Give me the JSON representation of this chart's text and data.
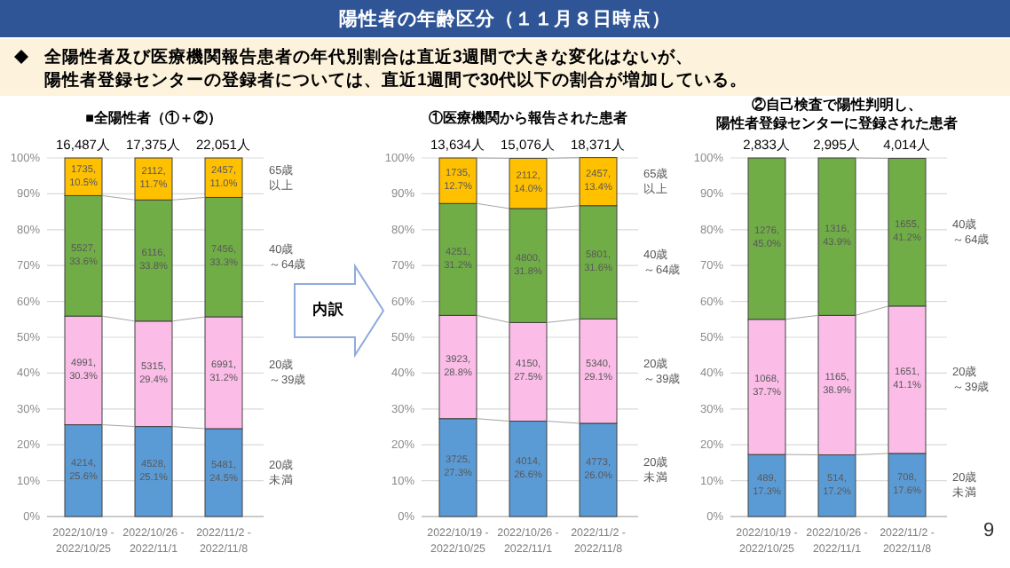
{
  "chart_data": [
    {
      "type": "other",
      "title": "陽性者の年齢区分（１１月８日時点）",
      "subtitle": "全陽性者及び医療機関報告患者の年代別割合は直近3週間で大きな変化はないが、陽性者登録センターの登録者については、直近1週間で30代以下の割合が増加している。",
      "annotations": [
        "内訳",
        "9"
      ]
    },
    {
      "type": "bar",
      "stacked": true,
      "title": "■全陽性者（①＋②）",
      "categories": [
        "2022/10/19 - 2022/10/25",
        "2022/10/26 - 2022/11/1",
        "2022/11/2 - 2022/11/8"
      ],
      "ylim": [
        0,
        100
      ],
      "yticks": [
        {
          "value": 0,
          "label": "0%"
        },
        {
          "value": 10,
          "label": "10%"
        },
        {
          "value": 20,
          "label": "20%"
        },
        {
          "value": 30,
          "label": "30%"
        },
        {
          "value": 40,
          "label": "40%"
        },
        {
          "value": 50,
          "label": "50%"
        },
        {
          "value": 60,
          "label": "60%"
        },
        {
          "value": 70,
          "label": "70%"
        },
        {
          "value": 80,
          "label": "80%"
        },
        {
          "value": 90,
          "label": "90%"
        },
        {
          "value": 100,
          "label": "100%"
        }
      ],
      "grid": "y",
      "legend": false,
      "annotations": [
        {
          "text": "16,487人",
          "x": "2022/10/19 - 2022/10/25",
          "y": 100
        },
        {
          "text": "17,375人",
          "x": "2022/10/26 - 2022/11/1",
          "y": 100
        },
        {
          "text": "22,051人",
          "x": "2022/11/2 - 2022/11/8",
          "y": 100
        }
      ],
      "series": [
        {
          "name": "20歳未満",
          "color": "#5b9bd5",
          "values": [
            25.6,
            25.1,
            24.5
          ],
          "value_labels": [
            "4214, 25.6%",
            "4528, 25.1%",
            "5481, 24.5%"
          ]
        },
        {
          "name": "20歳～39歳",
          "color": "#fbbde8",
          "values": [
            30.3,
            29.4,
            31.2
          ],
          "value_labels": [
            "4991, 30.3%",
            "5315, 29.4%",
            "6991, 31.2%"
          ]
        },
        {
          "name": "40歳～64歳",
          "color": "#70ad47",
          "values": [
            33.6,
            33.8,
            33.3
          ],
          "value_labels": [
            "5527, 33.6%",
            "6116, 33.8%",
            "7456, 33.3%"
          ]
        },
        {
          "name": "65歳以上",
          "color": "#ffc000",
          "values": [
            10.5,
            11.7,
            11.0
          ],
          "value_labels": [
            "1735, 10.5%",
            "2112, 11.7%",
            "2457, 11.0%"
          ]
        }
      ]
    },
    {
      "type": "bar",
      "stacked": true,
      "title": "①医療機関から報告された患者",
      "categories": [
        "2022/10/19 - 2022/10/25",
        "2022/10/26 - 2022/11/1",
        "2022/11/2 - 2022/11/8"
      ],
      "ylim": [
        0,
        100
      ],
      "yticks": [
        {
          "value": 0,
          "label": "0%"
        },
        {
          "value": 10,
          "label": "10%"
        },
        {
          "value": 20,
          "label": "20%"
        },
        {
          "value": 30,
          "label": "30%"
        },
        {
          "value": 40,
          "label": "40%"
        },
        {
          "value": 50,
          "label": "50%"
        },
        {
          "value": 60,
          "label": "60%"
        },
        {
          "value": 70,
          "label": "70%"
        },
        {
          "value": 80,
          "label": "80%"
        },
        {
          "value": 90,
          "label": "90%"
        },
        {
          "value": 100,
          "label": "100%"
        }
      ],
      "grid": "y",
      "legend": false,
      "annotations": [
        {
          "text": "13,634人",
          "x": "2022/10/19 - 2022/10/25",
          "y": 100
        },
        {
          "text": "15,076人",
          "x": "2022/10/26 - 2022/11/1",
          "y": 100
        },
        {
          "text": "18,371人",
          "x": "2022/11/2 - 2022/11/8",
          "y": 100
        }
      ],
      "series": [
        {
          "name": "20歳未満",
          "color": "#5b9bd5",
          "values": [
            27.3,
            26.6,
            26.0
          ],
          "value_labels": [
            "3725, 27.3%",
            "4014, 26.6%",
            "4773, 26.0%"
          ]
        },
        {
          "name": "20歳～39歳",
          "color": "#fbbde8",
          "values": [
            28.8,
            27.5,
            29.1
          ],
          "value_labels": [
            "3923, 28.8%",
            "4150, 27.5%",
            "5340, 29.1%"
          ]
        },
        {
          "name": "40歳～64歳",
          "color": "#70ad47",
          "values": [
            31.2,
            31.8,
            31.6
          ],
          "value_labels": [
            "4251, 31.2%",
            "4800, 31.8%",
            "5801, 31.6%"
          ]
        },
        {
          "name": "65歳以上",
          "color": "#ffc000",
          "values": [
            12.7,
            14.0,
            13.4
          ],
          "value_labels": [
            "1735, 12.7%",
            "2112, 14.0%",
            "2457, 13.4%"
          ]
        }
      ]
    },
    {
      "type": "bar",
      "stacked": true,
      "title": "②自己検査で陽性判明し、陽性者登録センターに登録された患者",
      "categories": [
        "2022/10/19 - 2022/10/25",
        "2022/10/26 - 2022/11/1",
        "2022/11/2 - 2022/11/8"
      ],
      "ylim": [
        0,
        100
      ],
      "yticks": [
        {
          "value": 0,
          "label": "0%"
        },
        {
          "value": 10,
          "label": "10%"
        },
        {
          "value": 20,
          "label": "20%"
        },
        {
          "value": 30,
          "label": "30%"
        },
        {
          "value": 40,
          "label": "40%"
        },
        {
          "value": 50,
          "label": "50%"
        },
        {
          "value": 60,
          "label": "60%"
        },
        {
          "value": 70,
          "label": "70%"
        },
        {
          "value": 80,
          "label": "80%"
        },
        {
          "value": 90,
          "label": "90%"
        },
        {
          "value": 100,
          "label": "100%"
        }
      ],
      "grid": "y",
      "legend": false,
      "annotations": [
        {
          "text": "2,833人",
          "x": "2022/10/19 - 2022/10/25",
          "y": 100
        },
        {
          "text": "2,995人",
          "x": "2022/10/26 - 2022/11/1",
          "y": 100
        },
        {
          "text": "4,014人",
          "x": "2022/11/2 - 2022/11/8",
          "y": 100
        }
      ],
      "series": [
        {
          "name": "20歳未満",
          "color": "#5b9bd5",
          "values": [
            17.3,
            17.2,
            17.6
          ],
          "value_labels": [
            "489, 17.3%",
            "514, 17.2%",
            "708, 17.6%"
          ]
        },
        {
          "name": "20歳～39歳",
          "color": "#fbbde8",
          "values": [
            37.7,
            38.9,
            41.1
          ],
          "value_labels": [
            "1068, 37.7%",
            "1165, 38.9%",
            "1651, 41.1%"
          ]
        },
        {
          "name": "40歳～64歳",
          "color": "#70ad47",
          "values": [
            45.0,
            43.9,
            41.2
          ],
          "value_labels": [
            "1276, 45.0%",
            "1316, 43.9%",
            "1655, 41.2%"
          ]
        }
      ]
    }
  ]
}
